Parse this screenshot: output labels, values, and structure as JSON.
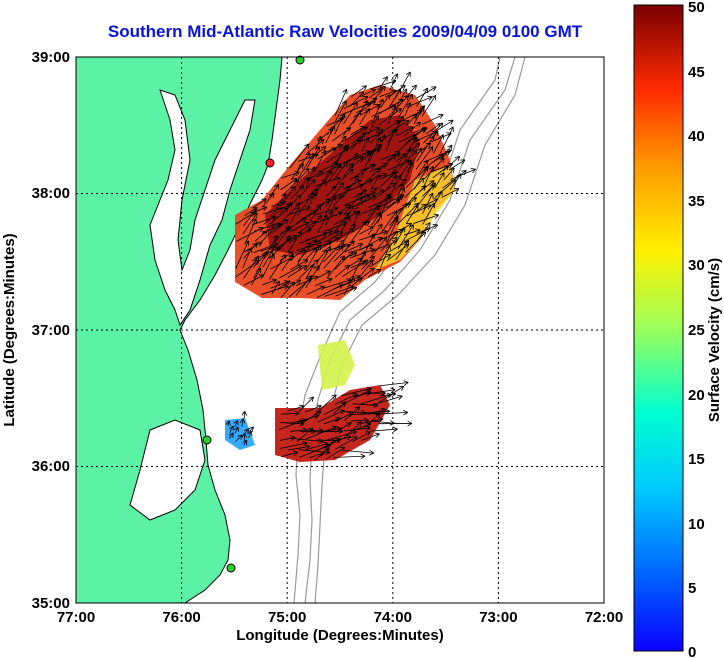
{
  "title": "Southern Mid-Atlantic Raw Velocities 2009/04/09 0100 GMT",
  "x_axis": {
    "label": "Longitude (Degrees:Minutes)",
    "ticks": [
      "77:00",
      "76:00",
      "75:00",
      "74:00",
      "73:00",
      "72:00"
    ],
    "range": [
      -77,
      -72
    ]
  },
  "y_axis": {
    "label": "Latitude (Degrees:Minutes)",
    "ticks": [
      "39:00",
      "38:00",
      "37:00",
      "36:00",
      "35:00"
    ],
    "range": [
      35,
      39
    ]
  },
  "colorbar": {
    "label": "Surface Velocity (cm/s)",
    "ticks": [
      "50",
      "45",
      "40",
      "35",
      "30",
      "25",
      "20",
      "15",
      "10",
      "5",
      "0"
    ],
    "range": [
      0,
      50
    ],
    "colormap": "jet"
  },
  "colors": {
    "land": "#5cf2a6",
    "coast": "#000000",
    "bathymetry": "#9a9a9a",
    "grid": "#000000",
    "site_marker": "#2bd12b",
    "site_marker_red": "#ff2020"
  },
  "grid": "dotted"
}
